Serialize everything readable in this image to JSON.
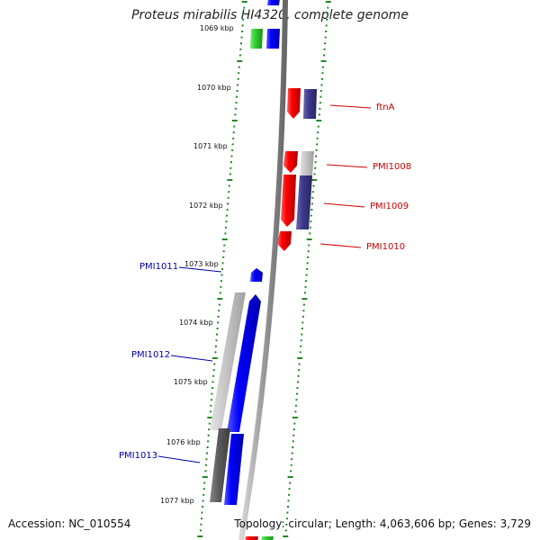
{
  "title": "Proteus mirabilis HI4320, complete genome",
  "accession": "Accession: NC_010554",
  "topology": "Topology: circular; Length: 4,063,606 bp; Genes: 3,729",
  "kbp_labels": [
    "1069 kbp",
    "1070 kbp",
    "1071 kbp",
    "1072 kbp",
    "1073 kbp",
    "1074 kbp",
    "1075 kbp",
    "1076 kbp",
    "1077 kbp"
  ],
  "gene_labels": [
    {
      "text": "ftnA",
      "strand": "forward"
    },
    {
      "text": "PMI1008",
      "strand": "forward"
    },
    {
      "text": "PMI1009",
      "strand": "forward"
    },
    {
      "text": "PMI1010",
      "strand": "forward"
    },
    {
      "text": "PMI1011",
      "strand": "reverse"
    },
    {
      "text": "PMI1012",
      "strand": "reverse"
    },
    {
      "text": "PMI1013",
      "strand": "reverse"
    }
  ],
  "colors": {
    "forward_gene": "#e00000",
    "reverse_gene": "#0000dd",
    "forward_label": "#cc0000",
    "reverse_label": "#0000aa",
    "ticks": "#228822",
    "backbone": "#999999"
  }
}
